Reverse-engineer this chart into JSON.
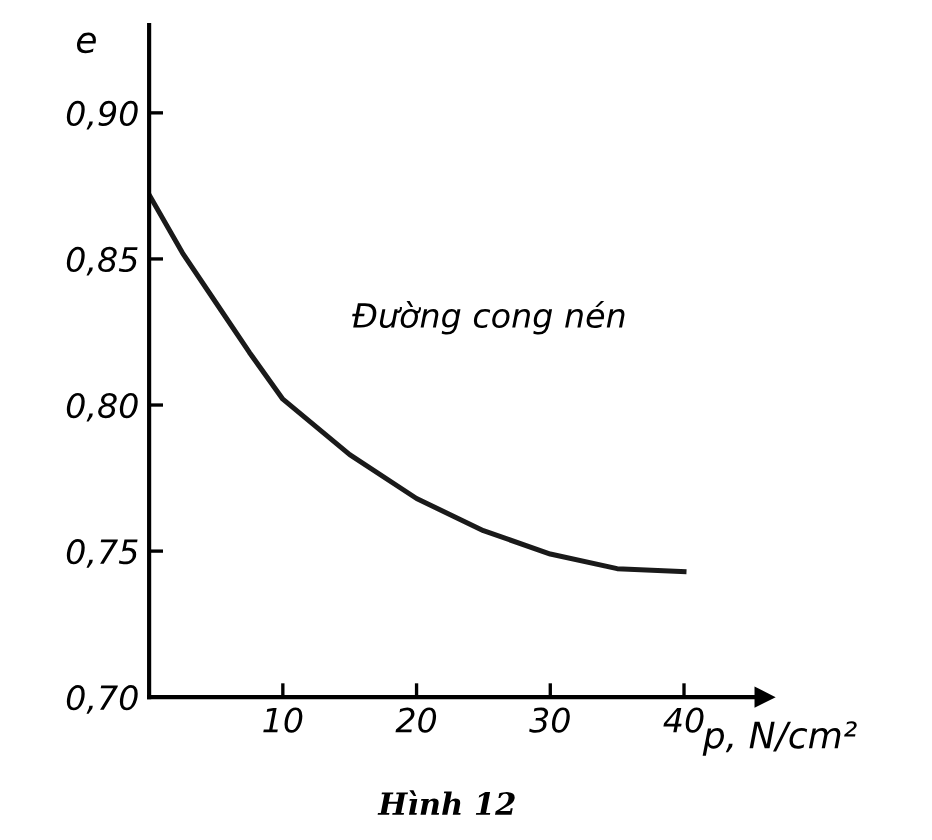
{
  "chart_data": {
    "type": "line",
    "ylabel": "e",
    "xlabel": "p, N/cm²",
    "x": [
      0,
      2.5,
      5,
      7.5,
      10,
      15,
      20,
      25,
      30,
      35,
      40
    ],
    "series": [
      {
        "color": "#1a1a1a",
        "values": [
          0.872,
          0.852,
          0.835,
          0.818,
          0.802,
          0.783,
          0.768,
          0.757,
          0.749,
          0.744,
          0.743
        ]
      }
    ],
    "xlim": [
      0,
      46
    ],
    "ylim": [
      0.7,
      0.93
    ],
    "xticks": [
      10,
      20,
      30,
      40
    ],
    "yticks": [
      {
        "value": 0.7,
        "label": "0,70"
      },
      {
        "value": 0.75,
        "label": "0,75"
      },
      {
        "value": 0.8,
        "label": "0,80"
      },
      {
        "value": 0.85,
        "label": "0,85"
      },
      {
        "value": 0.9,
        "label": "0,90"
      }
    ],
    "annotations": [
      "Đường cong nén",
      "Hình 12"
    ],
    "grid": false,
    "legend": false,
    "marker": "none",
    "line_style": "solid"
  }
}
